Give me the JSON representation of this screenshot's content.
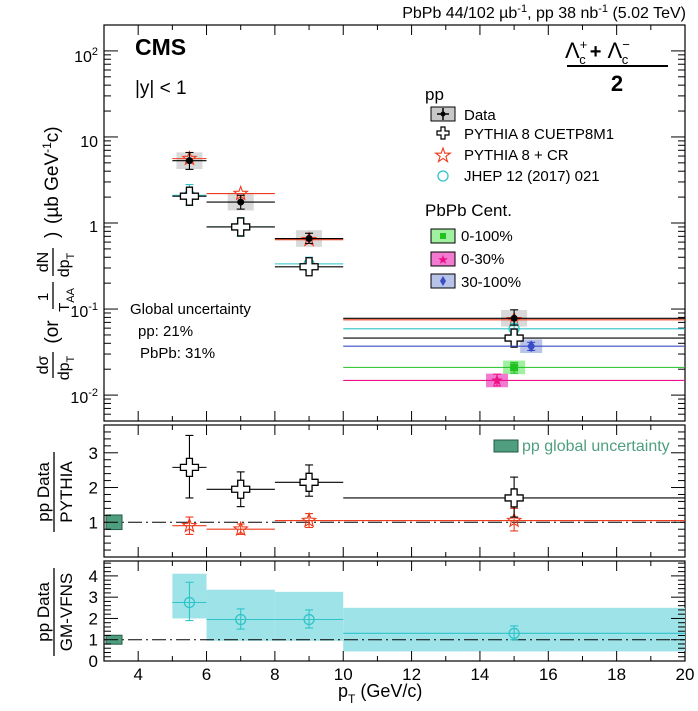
{
  "header": {
    "lumi_pbpb": "PbPb 44/102 µb",
    "lumi_pbpb_sup": "-1",
    "lumi_pp": ", pp 38 nb",
    "lumi_pp_sup": "-1",
    "energy": " (5.02 TeV)"
  },
  "cms_label": "CMS",
  "rapidity_label": "|y| < 1",
  "particle": {
    "lambda": "Λ",
    "plus": "+",
    "minus": "−",
    "sub": "c",
    "denominator": "2"
  },
  "global_uncertainty": {
    "title": "Global uncertainty",
    "pp": "pp: 21%",
    "pbpb": "PbPb: 31%"
  },
  "legend_pp": {
    "title": "pp",
    "entries": [
      "Data",
      "PYTHIA 8 CUETP8M1",
      "PYTHIA 8 + CR",
      "JHEP 12 (2017) 021"
    ]
  },
  "legend_pbpb": {
    "title": "PbPb Cent.",
    "entries": [
      "0-100%",
      "0-30%",
      "30-100%"
    ]
  },
  "ratio_legend": "pp global uncertainty",
  "colors": {
    "data": "#000000",
    "cuetp8m1": "#000000",
    "cr": "#ee3a1a",
    "jhep": "#2ec4c9",
    "pbpb_0_100": "#21c121",
    "pbpb_0_30": "#ee1289",
    "pbpb_30_100": "#3a4cc6",
    "jhep_band": "#9ee3e7",
    "global_box": "#4f9e7f"
  },
  "axes": {
    "x_label_p": "p",
    "x_label_sub": "T",
    "x_label_units": " (GeV/c)",
    "x_ticks": [
      "4",
      "6",
      "8",
      "10",
      "12",
      "14",
      "16",
      "18",
      "20"
    ],
    "top_y_ticks": {
      "e0": "10",
      "e0sup": "-2",
      "e1": "10",
      "e1sup": "-1",
      "t1": "1",
      "t10": "10",
      "e2": "10",
      "e2sup": "2"
    },
    "top_y_label": {
      "dsigma": "dσ",
      "dpt": "dp",
      "dpt_sub": "T",
      "or": "(or",
      "one": "1",
      "taa": "T",
      "taa_sub": "AA",
      "dn": "dN",
      "close": ")",
      "units": "(µb GeV",
      "units_sup": "-1",
      "units_end": "c)"
    },
    "mid_y_ticks": [
      "1",
      "2",
      "3"
    ],
    "mid_y_label": {
      "num": "pp Data",
      "den": "PYTHIA"
    },
    "bot_y_ticks": [
      "0",
      "1",
      "2",
      "3",
      "4"
    ],
    "bot_y_label": {
      "num": "pp Data",
      "den": "GM-VFNS"
    }
  },
  "chart_data": [
    {
      "type": "scatter",
      "panel": "cross-section",
      "y_scale": "log",
      "xlim": [
        3,
        20
      ],
      "ylim": [
        0.005,
        200
      ],
      "series": [
        {
          "name": "Data",
          "points": [
            {
              "x": 5.5,
              "y": 5.3,
              "xlo": 5,
              "xhi": 6,
              "ylo": 4.2,
              "yhi": 6.6
            },
            {
              "x": 7,
              "y": 1.75,
              "xlo": 6,
              "xhi": 8,
              "ylo": 1.45,
              "yhi": 2.1
            },
            {
              "x": 9,
              "y": 0.66,
              "xlo": 8,
              "xhi": 10,
              "ylo": 0.58,
              "yhi": 0.76
            },
            {
              "x": 15,
              "y": 0.078,
              "xlo": 10,
              "xhi": 20,
              "ylo": 0.065,
              "yhi": 0.098
            }
          ]
        },
        {
          "name": "PYTHIA 8 CUETP8M1",
          "points": [
            {
              "x": 5.5,
              "y": 2.05,
              "xlo": 5,
              "xhi": 6
            },
            {
              "x": 7,
              "y": 0.9,
              "xlo": 6,
              "xhi": 8
            },
            {
              "x": 9,
              "y": 0.31,
              "xlo": 8,
              "xhi": 10
            },
            {
              "x": 15,
              "y": 0.046,
              "xlo": 10,
              "xhi": 20
            }
          ]
        },
        {
          "name": "PYTHIA 8 + CR",
          "points": [
            {
              "x": 5.5,
              "y": 5.6,
              "xlo": 5,
              "xhi": 6
            },
            {
              "x": 7,
              "y": 2.2,
              "xlo": 6,
              "xhi": 8
            },
            {
              "x": 9,
              "y": 0.64,
              "xlo": 8,
              "xhi": 10
            },
            {
              "x": 15,
              "y": 0.075,
              "xlo": 10,
              "xhi": 20
            }
          ]
        },
        {
          "name": "JHEP 12 (2017) 021",
          "points": [
            {
              "x": 5.5,
              "y": 2.1,
              "xlo": 5,
              "xhi": 6,
              "ylo": 1.6,
              "yhi": 2.8
            },
            {
              "x": 7,
              "y": 0.9,
              "xlo": 6,
              "xhi": 8,
              "ylo": 0.7,
              "yhi": 1.15
            },
            {
              "x": 9,
              "y": 0.335,
              "xlo": 8,
              "xhi": 10,
              "ylo": 0.28,
              "yhi": 0.4
            },
            {
              "x": 15,
              "y": 0.059,
              "xlo": 10,
              "xhi": 20,
              "ylo": 0.052,
              "yhi": 0.068
            }
          ]
        },
        {
          "name": "0-100%",
          "points": [
            {
              "x": 15,
              "y": 0.021,
              "xlo": 10,
              "xhi": 20,
              "ylo": 0.018,
              "yhi": 0.024
            }
          ]
        },
        {
          "name": "0-30%",
          "points": [
            {
              "x": 14.5,
              "y": 0.0148,
              "xlo": 10,
              "xhi": 20,
              "ylo": 0.0128,
              "yhi": 0.0175
            }
          ]
        },
        {
          "name": "30-100%",
          "points": [
            {
              "x": 15.5,
              "y": 0.037,
              "xlo": 10,
              "xhi": 20,
              "ylo": 0.033,
              "yhi": 0.041
            }
          ]
        }
      ]
    },
    {
      "type": "scatter",
      "panel": "ratio-pythia",
      "xlim": [
        3,
        20
      ],
      "ylim": [
        0,
        3.8
      ],
      "reference_line": 1,
      "series": [
        {
          "name": "pp Data / PYTHIA 8 CUETP8M1",
          "points": [
            {
              "x": 5.5,
              "y": 2.58,
              "xlo": 5,
              "xhi": 6,
              "ylo": 1.7,
              "yhi": 3.5
            },
            {
              "x": 7,
              "y": 1.95,
              "xlo": 6,
              "xhi": 8,
              "ylo": 1.45,
              "yhi": 2.45
            },
            {
              "x": 9,
              "y": 2.15,
              "xlo": 8,
              "xhi": 10,
              "ylo": 1.75,
              "yhi": 2.65
            },
            {
              "x": 15,
              "y": 1.7,
              "xlo": 10,
              "xhi": 20,
              "ylo": 1.15,
              "yhi": 2.3
            }
          ]
        },
        {
          "name": "pp Data / PYTHIA 8 + CR",
          "points": [
            {
              "x": 5.5,
              "y": 0.9,
              "xlo": 5,
              "xhi": 6,
              "ylo": 0.65,
              "yhi": 1.15
            },
            {
              "x": 7,
              "y": 0.8,
              "xlo": 6,
              "xhi": 8,
              "ylo": 0.65,
              "yhi": 0.95
            },
            {
              "x": 9,
              "y": 1.05,
              "xlo": 8,
              "xhi": 10,
              "ylo": 0.85,
              "yhi": 1.25
            },
            {
              "x": 15,
              "y": 1.05,
              "xlo": 10,
              "xhi": 20,
              "ylo": 0.75,
              "yhi": 1.4
            }
          ]
        }
      ],
      "global_uncertainty_box": {
        "ylo": 0.79,
        "yhi": 1.21
      }
    },
    {
      "type": "scatter",
      "panel": "ratio-gmvfns",
      "xlim": [
        3,
        20
      ],
      "ylim": [
        0,
        4.7
      ],
      "reference_line": 1,
      "series": [
        {
          "name": "pp Data / GM-VFNS",
          "points": [
            {
              "x": 5.5,
              "y": 2.75,
              "xlo": 5,
              "xhi": 6,
              "ylo": 1.9,
              "yhi": 3.7
            },
            {
              "x": 7,
              "y": 1.95,
              "xlo": 6,
              "xhi": 8,
              "ylo": 1.5,
              "yhi": 2.45
            },
            {
              "x": 9,
              "y": 1.95,
              "xlo": 8,
              "xhi": 10,
              "ylo": 1.55,
              "yhi": 2.4
            },
            {
              "x": 15,
              "y": 1.3,
              "xlo": 10,
              "xhi": 20,
              "ylo": 1.0,
              "yhi": 1.65
            }
          ]
        }
      ],
      "theory_band": [
        {
          "xlo": 5,
          "xhi": 6,
          "ylo": 2.0,
          "yhi": 4.1
        },
        {
          "xlo": 6,
          "xhi": 8,
          "ylo": 0.95,
          "yhi": 3.35
        },
        {
          "xlo": 8,
          "xhi": 10,
          "ylo": 0.95,
          "yhi": 3.25
        },
        {
          "xlo": 10,
          "xhi": 20,
          "ylo": 0.45,
          "yhi": 2.5
        }
      ],
      "global_uncertainty_box": {
        "ylo": 0.79,
        "yhi": 1.21
      }
    }
  ]
}
